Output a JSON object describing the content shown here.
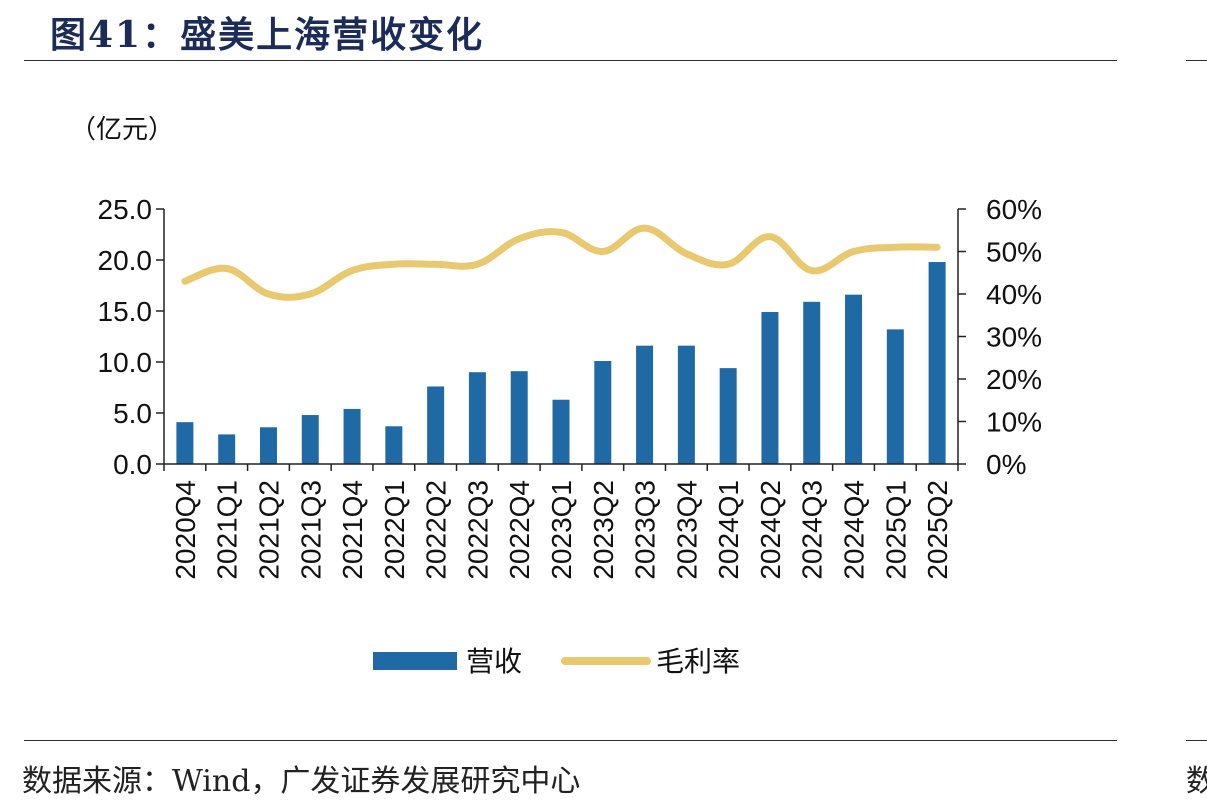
{
  "title": "图41：盛美上海营收变化",
  "source": "数据来源：Wind，广发证券发展研究中心",
  "edge_char": "数",
  "chart_data": {
    "type": "bar",
    "unit_label": "（亿元）",
    "categories": [
      "2020Q4",
      "2021Q1",
      "2021Q2",
      "2021Q3",
      "2021Q4",
      "2022Q1",
      "2022Q2",
      "2022Q3",
      "2022Q4",
      "2023Q1",
      "2023Q2",
      "2023Q3",
      "2023Q4",
      "2024Q1",
      "2024Q2",
      "2024Q3",
      "2024Q4",
      "2025Q1",
      "2025Q2"
    ],
    "series": [
      {
        "name": "营收",
        "type": "bar",
        "axis": "left",
        "color": "#1f6aa5",
        "values": [
          4.1,
          2.9,
          3.6,
          4.8,
          5.4,
          3.7,
          7.6,
          9.0,
          9.1,
          6.3,
          10.1,
          11.6,
          11.6,
          9.4,
          14.9,
          15.9,
          16.6,
          13.2,
          19.8
        ]
      },
      {
        "name": "毛利率",
        "type": "line",
        "axis": "right",
        "color": "#e8c96f",
        "values": [
          43,
          46,
          40,
          40,
          45.5,
          47,
          47,
          47,
          53,
          54.5,
          50,
          55.5,
          49.5,
          47,
          53.5,
          45.5,
          50,
          51,
          51
        ]
      }
    ],
    "y_left": {
      "min": 0,
      "max": 25,
      "ticks": [
        "0.0",
        "5.0",
        "10.0",
        "15.0",
        "20.0",
        "25.0"
      ]
    },
    "y_right": {
      "min": 0,
      "max": 60,
      "ticks": [
        "0%",
        "10%",
        "20%",
        "30%",
        "40%",
        "50%",
        "60%"
      ]
    },
    "legend_position": "bottom-center"
  }
}
